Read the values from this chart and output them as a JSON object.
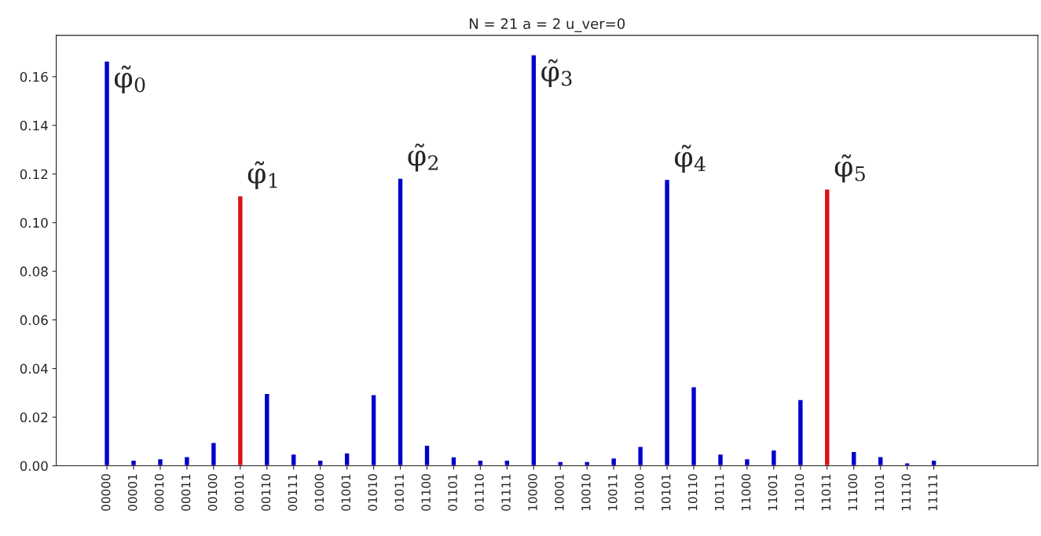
{
  "chart_data": {
    "type": "bar",
    "title": "N = 21 a = 2 u_ver=0",
    "categories": [
      "00000",
      "00001",
      "00010",
      "00011",
      "00100",
      "00101",
      "00110",
      "00111",
      "01000",
      "01001",
      "01010",
      "01011",
      "01100",
      "01101",
      "01110",
      "01111",
      "10000",
      "10001",
      "10010",
      "10011",
      "10100",
      "10101",
      "10110",
      "10111",
      "11000",
      "11001",
      "11010",
      "11011",
      "11100",
      "11101",
      "11110",
      "11111"
    ],
    "values": [
      0.1664,
      0.0023,
      0.0029,
      0.0038,
      0.0096,
      0.111,
      0.0298,
      0.0048,
      0.0023,
      0.0053,
      0.0293,
      0.1183,
      0.0085,
      0.0037,
      0.0023,
      0.0023,
      0.169,
      0.0018,
      0.0018,
      0.0032,
      0.008,
      0.1178,
      0.0325,
      0.0048,
      0.0029,
      0.0065,
      0.0273,
      0.1138,
      0.0059,
      0.0038,
      0.0012,
      0.0023
    ],
    "colors": [
      "#0000cc",
      "#0000cc",
      "#0000cc",
      "#0000cc",
      "#0000cc",
      "#e01010",
      "#0000cc",
      "#0000cc",
      "#0000cc",
      "#0000cc",
      "#0000cc",
      "#0000cc",
      "#0000cc",
      "#0000cc",
      "#0000cc",
      "#0000cc",
      "#0000cc",
      "#0000cc",
      "#0000cc",
      "#0000cc",
      "#0000cc",
      "#0000cc",
      "#0000cc",
      "#0000cc",
      "#0000cc",
      "#0000cc",
      "#0000cc",
      "#e01010",
      "#0000cc",
      "#0000cc",
      "#0000cc",
      "#0000cc"
    ],
    "ylim": [
      0,
      0.177
    ],
    "yticks": [
      {
        "value": 0,
        "label": "0.00"
      },
      {
        "value": 0.02,
        "label": "0.02"
      },
      {
        "value": 0.04,
        "label": "0.04"
      },
      {
        "value": 0.06,
        "label": "0.06"
      },
      {
        "value": 0.08,
        "label": "0.08"
      },
      {
        "value": 0.1,
        "label": "0.10"
      },
      {
        "value": 0.12,
        "label": "0.12"
      },
      {
        "value": 0.14,
        "label": "0.14"
      },
      {
        "value": 0.16,
        "label": "0.16"
      }
    ],
    "annotations": [
      {
        "text": "φ̃$_{0}$",
        "x": "00000",
        "y": 0.1664
      },
      {
        "text": "φ̃$_{1}$",
        "x": "00101",
        "y": 0.111
      },
      {
        "text": "φ̃$_{2}$",
        "x": "01011",
        "y": 0.1183
      },
      {
        "text": "φ̃$_{3}$",
        "x": "10000",
        "y": 0.169
      },
      {
        "text": "φ̃$_{4}$",
        "x": "10101",
        "y": 0.1178
      },
      {
        "text": "φ̃$_{5}$",
        "x": "11011",
        "y": 0.1138
      }
    ]
  }
}
